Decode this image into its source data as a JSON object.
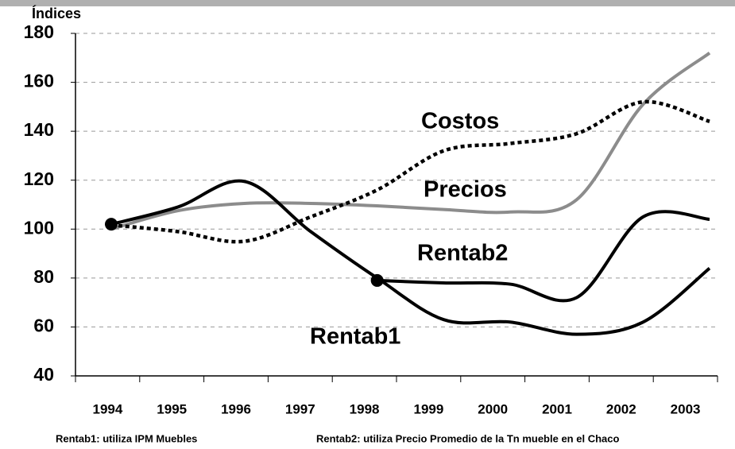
{
  "chart_data": {
    "type": "line",
    "y_label": "Índices",
    "categories": [
      "1994",
      "1995",
      "1996",
      "1997",
      "1998",
      "1999",
      "2000",
      "2001",
      "2002",
      "2003"
    ],
    "series": [
      {
        "name": "Precios",
        "color": "#8c8c8c",
        "style": "solid",
        "values": [
          100,
          107.5,
          110.5,
          110.5,
          109.5,
          108,
          107,
          112,
          151,
          172
        ]
      },
      {
        "name": "Costos",
        "color": "#000000",
        "style": "dotted",
        "values": [
          101.7,
          99,
          95,
          105,
          116,
          132,
          135,
          139,
          152,
          144
        ]
      },
      {
        "name": "Rentab1",
        "color": "#000000",
        "style": "solid",
        "values": [
          102,
          109,
          119.5,
          99,
          80,
          63,
          62,
          57,
          62,
          84
        ]
      },
      {
        "name": "Rentab2",
        "color": "#000000",
        "style": "solid",
        "values": [
          null,
          null,
          null,
          null,
          79,
          78,
          77.5,
          72,
          105,
          104
        ]
      }
    ],
    "ylim": [
      40,
      180
    ],
    "yticks": [
      40,
      60,
      80,
      100,
      120,
      140,
      160,
      180
    ],
    "grid": true,
    "notes": [
      "Rentab1: utiliza IPM Muebles",
      "Rentab2: utiliza Precio Promedio de la Tn mueble en el Chaco"
    ]
  }
}
